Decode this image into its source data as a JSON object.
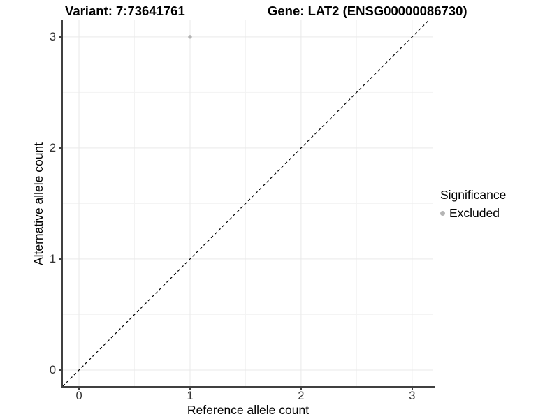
{
  "title": {
    "variant": "Variant: 7:73641761",
    "gene": "Gene: LAT2 (ENSG00000086730)"
  },
  "axes": {
    "x_label": "Reference allele count",
    "y_label": "Alternative allele count",
    "x_tick_labels": [
      "0",
      "1",
      "2",
      "3"
    ],
    "y_tick_labels": [
      "0",
      "1",
      "2",
      "3"
    ]
  },
  "legend": {
    "title": "Significance",
    "items": [
      {
        "label": "Excluded",
        "color": "#b5b5b5"
      }
    ]
  },
  "colors": {
    "background": "#ffffff",
    "axis_line": "#404040",
    "tick_label": "#333333",
    "grid_major": "#e9e9e9",
    "grid_minor": "#f3f3f3",
    "identity_line": "#000000",
    "point": "#b3b3b3"
  },
  "chart_data": {
    "type": "scatter",
    "title": "Variant: 7:73641761 | Gene: LAT2 (ENSG00000086730)",
    "xlabel": "Reference allele count",
    "ylabel": "Alternative allele count",
    "xlim": [
      -0.145,
      3.19
    ],
    "ylim": [
      -0.145,
      3.15
    ],
    "x_ticks": [
      0,
      1,
      2,
      3
    ],
    "y_ticks": [
      0,
      1,
      2,
      3
    ],
    "grid": "on",
    "legend_position": "right",
    "legend_title": "Significance",
    "series": [
      {
        "name": "Excluded",
        "color": "#b3b3b3",
        "points": [
          {
            "x": 1,
            "y": 3
          }
        ]
      }
    ],
    "reference_line": {
      "type": "identity y=x",
      "style": "dashed",
      "color": "#000000"
    }
  }
}
